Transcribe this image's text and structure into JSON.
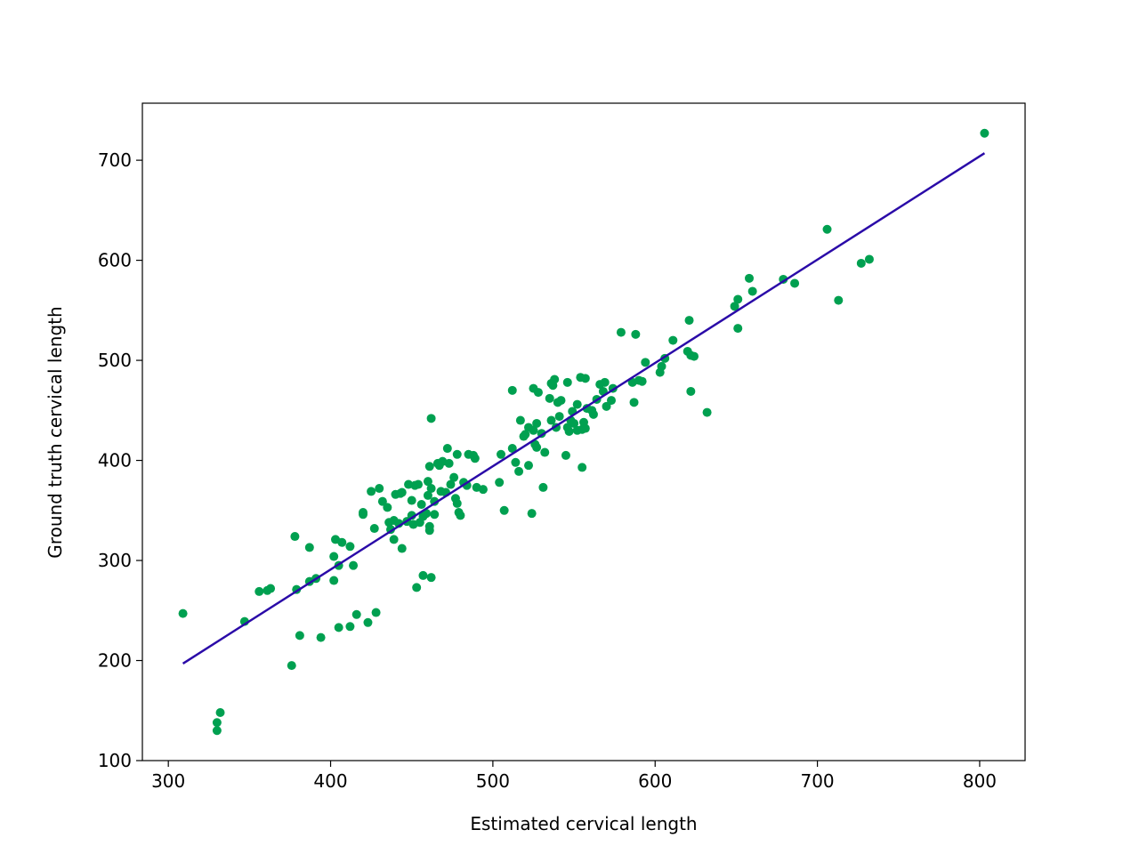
{
  "chart_data": {
    "type": "scatter",
    "xlabel": "Estimated cervical length",
    "ylabel": "Ground truth cervical length",
    "xlim": [
      284,
      828
    ],
    "ylim": [
      100,
      757
    ],
    "xticks": [
      300,
      400,
      500,
      600,
      700,
      800
    ],
    "yticks": [
      100,
      200,
      300,
      400,
      500,
      600,
      700
    ],
    "grid": false,
    "colors": {
      "points": "#00a050",
      "fit_line": "#2a0aa8",
      "frame": "#000000"
    },
    "series": [
      {
        "type": "scatter",
        "points": [
          [
            309,
            247
          ],
          [
            330,
            130
          ],
          [
            330,
            138
          ],
          [
            332,
            148
          ],
          [
            347,
            239
          ],
          [
            356,
            269
          ],
          [
            361,
            270
          ],
          [
            363,
            272
          ],
          [
            376,
            195
          ],
          [
            378,
            324
          ],
          [
            379,
            271
          ],
          [
            381,
            225
          ],
          [
            387,
            313
          ],
          [
            387,
            279
          ],
          [
            391,
            282
          ],
          [
            394,
            223
          ],
          [
            402,
            304
          ],
          [
            402,
            280
          ],
          [
            403,
            321
          ],
          [
            405,
            233
          ],
          [
            405,
            295
          ],
          [
            407,
            318
          ],
          [
            412,
            314
          ],
          [
            412,
            234
          ],
          [
            414,
            295
          ],
          [
            416,
            246
          ],
          [
            420,
            348
          ],
          [
            420,
            346
          ],
          [
            423,
            238
          ],
          [
            425,
            369
          ],
          [
            427,
            332
          ],
          [
            428,
            248
          ],
          [
            430,
            372
          ],
          [
            432,
            359
          ],
          [
            435,
            353
          ],
          [
            436,
            338
          ],
          [
            437,
            331
          ],
          [
            439,
            340
          ],
          [
            439,
            321
          ],
          [
            440,
            366
          ],
          [
            442,
            337
          ],
          [
            443,
            367
          ],
          [
            444,
            312
          ],
          [
            444,
            368
          ],
          [
            447,
            339
          ],
          [
            448,
            376
          ],
          [
            450,
            360
          ],
          [
            450,
            345
          ],
          [
            451,
            336
          ],
          [
            452,
            375
          ],
          [
            453,
            273
          ],
          [
            454,
            376
          ],
          [
            455,
            338
          ],
          [
            456,
            356
          ],
          [
            457,
            285
          ],
          [
            457,
            344
          ],
          [
            459,
            347
          ],
          [
            460,
            379
          ],
          [
            460,
            365
          ],
          [
            461,
            330
          ],
          [
            461,
            334
          ],
          [
            461,
            394
          ],
          [
            462,
            442
          ],
          [
            462,
            372
          ],
          [
            462,
            283
          ],
          [
            464,
            359
          ],
          [
            464,
            346
          ],
          [
            466,
            397
          ],
          [
            467,
            395
          ],
          [
            468,
            369
          ],
          [
            469,
            399
          ],
          [
            471,
            368
          ],
          [
            472,
            412
          ],
          [
            473,
            397
          ],
          [
            474,
            376
          ],
          [
            476,
            383
          ],
          [
            477,
            362
          ],
          [
            478,
            406
          ],
          [
            478,
            357
          ],
          [
            479,
            348
          ],
          [
            480,
            345
          ],
          [
            482,
            378
          ],
          [
            484,
            375
          ],
          [
            485,
            406
          ],
          [
            488,
            405
          ],
          [
            489,
            402
          ],
          [
            490,
            373
          ],
          [
            494,
            371
          ],
          [
            504,
            378
          ],
          [
            505,
            406
          ],
          [
            507,
            350
          ],
          [
            512,
            412
          ],
          [
            512,
            470
          ],
          [
            514,
            398
          ],
          [
            516,
            389
          ],
          [
            517,
            440
          ],
          [
            519,
            424
          ],
          [
            520,
            426
          ],
          [
            522,
            395
          ],
          [
            522,
            433
          ],
          [
            524,
            347
          ],
          [
            525,
            430
          ],
          [
            525,
            472
          ],
          [
            526,
            416
          ],
          [
            527,
            413
          ],
          [
            527,
            437
          ],
          [
            528,
            468
          ],
          [
            530,
            427
          ],
          [
            531,
            373
          ],
          [
            532,
            408
          ],
          [
            535,
            462
          ],
          [
            536,
            440
          ],
          [
            536,
            477
          ],
          [
            537,
            475
          ],
          [
            538,
            481
          ],
          [
            539,
            433
          ],
          [
            540,
            458
          ],
          [
            541,
            444
          ],
          [
            542,
            460
          ],
          [
            545,
            405
          ],
          [
            546,
            478
          ],
          [
            546,
            433
          ],
          [
            547,
            429
          ],
          [
            548,
            440
          ],
          [
            549,
            449
          ],
          [
            550,
            437
          ],
          [
            552,
            430
          ],
          [
            552,
            456
          ],
          [
            554,
            483
          ],
          [
            555,
            393
          ],
          [
            555,
            431
          ],
          [
            556,
            438
          ],
          [
            557,
            482
          ],
          [
            557,
            432
          ],
          [
            558,
            452
          ],
          [
            561,
            450
          ],
          [
            562,
            446
          ],
          [
            564,
            461
          ],
          [
            566,
            476
          ],
          [
            568,
            469
          ],
          [
            569,
            478
          ],
          [
            570,
            454
          ],
          [
            573,
            460
          ],
          [
            574,
            472
          ],
          [
            579,
            528
          ],
          [
            586,
            478
          ],
          [
            587,
            458
          ],
          [
            588,
            526
          ],
          [
            590,
            480
          ],
          [
            592,
            479
          ],
          [
            594,
            498
          ],
          [
            603,
            488
          ],
          [
            604,
            494
          ],
          [
            606,
            502
          ],
          [
            611,
            520
          ],
          [
            620,
            509
          ],
          [
            621,
            540
          ],
          [
            622,
            505
          ],
          [
            622,
            469
          ],
          [
            624,
            504
          ],
          [
            632,
            448
          ],
          [
            649,
            554
          ],
          [
            651,
            561
          ],
          [
            651,
            532
          ],
          [
            658,
            582
          ],
          [
            660,
            569
          ],
          [
            679,
            581
          ],
          [
            686,
            577
          ],
          [
            706,
            631
          ],
          [
            713,
            560
          ],
          [
            727,
            597
          ],
          [
            732,
            601
          ],
          [
            803,
            727
          ]
        ]
      },
      {
        "type": "line",
        "points": [
          [
            309,
            197
          ],
          [
            803,
            707
          ]
        ]
      }
    ]
  }
}
